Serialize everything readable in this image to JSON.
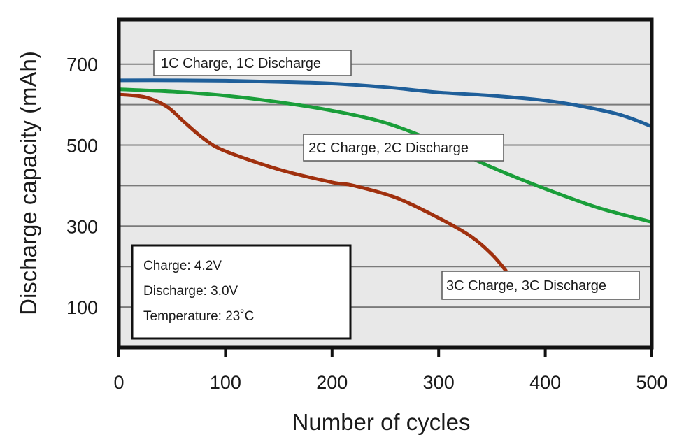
{
  "chart_data": {
    "type": "line",
    "title": "",
    "xlabel": "Number of cycles",
    "ylabel": "Discharge capacity (mAh)",
    "xlim": [
      0,
      500
    ],
    "ylim": [
      0,
      810
    ],
    "x_ticks": [
      0,
      100,
      200,
      300,
      400,
      500
    ],
    "y_ticks": [
      100,
      300,
      500,
      700
    ],
    "y_gridlines": [
      100,
      200,
      300,
      400,
      500,
      600,
      700
    ],
    "grid": true,
    "background": "#e8e8e8",
    "series": [
      {
        "name": "1C Charge, 1C Discharge",
        "color": "#1f5f9a",
        "x": [
          0,
          50,
          100,
          150,
          200,
          250,
          300,
          350,
          400,
          430,
          470,
          500
        ],
        "y": [
          660,
          660,
          659,
          656,
          652,
          643,
          630,
          622,
          610,
          598,
          575,
          546
        ]
      },
      {
        "name": "2C Charge, 2C Discharge",
        "color": "#1a9e3a",
        "x": [
          0,
          50,
          100,
          150,
          200,
          250,
          300,
          350,
          400,
          450,
          500
        ],
        "y": [
          638,
          632,
          622,
          606,
          585,
          555,
          505,
          445,
          392,
          345,
          310
        ]
      },
      {
        "name": "3C Charge, 3C Discharge",
        "color": "#a0300e",
        "x": [
          0,
          25,
          45,
          60,
          80,
          100,
          150,
          200,
          220,
          260,
          300,
          330,
          350,
          363
        ],
        "y": [
          625,
          618,
          595,
          560,
          515,
          485,
          440,
          408,
          400,
          370,
          320,
          275,
          230,
          190
        ]
      }
    ],
    "annotation": {
      "lines": [
        "Charge: 4.2V",
        "Discharge: 3.0V",
        "Temperature: 23˚C"
      ]
    }
  }
}
